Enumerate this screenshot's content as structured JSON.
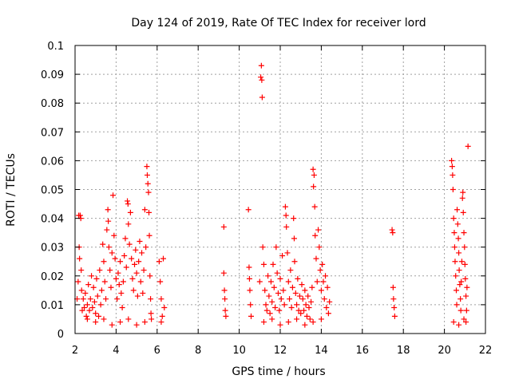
{
  "chart_data": {
    "type": "scatter",
    "title": "Day 124 of 2019, Rate Of TEC Index for receiver lord",
    "xlabel": "GPS time / hours",
    "ylabel": "ROTI / TECUs",
    "xlim": [
      2,
      22
    ],
    "ylim": [
      0,
      0.1
    ],
    "x_ticks": [
      "2",
      "4",
      "6",
      "8",
      "10",
      "12",
      "14",
      "16",
      "18",
      "20",
      "22"
    ],
    "y_ticks": [
      "0",
      "0.01",
      "0.02",
      "0.03",
      "0.04",
      "0.05",
      "0.06",
      "0.07",
      "0.08",
      "0.09",
      "0.1"
    ],
    "grid": true,
    "marker": "plus",
    "colors": {
      "series": "#ff0000",
      "grid": "#a0a0a0",
      "axes": "#000000"
    },
    "series": [
      {
        "points": [
          [
            2.1,
            0.012
          ],
          [
            2.15,
            0.018
          ],
          [
            2.18,
            0.041
          ],
          [
            2.2,
            0.03
          ],
          [
            2.22,
            0.026
          ],
          [
            2.25,
            0.041
          ],
          [
            2.28,
            0.04
          ],
          [
            2.3,
            0.022
          ],
          [
            2.32,
            0.015
          ],
          [
            2.35,
            0.008
          ],
          [
            2.4,
            0.012
          ],
          [
            2.45,
            0.009
          ],
          [
            2.5,
            0.014
          ],
          [
            2.55,
            0.006
          ],
          [
            2.6,
            0.01
          ],
          [
            2.65,
            0.017
          ],
          [
            2.7,
            0.008
          ],
          [
            2.75,
            0.012
          ],
          [
            2.8,
            0.02
          ],
          [
            2.85,
            0.009
          ],
          [
            2.9,
            0.016
          ],
          [
            2.95,
            0.011
          ],
          [
            3.0,
            0.007
          ],
          [
            3.05,
            0.019
          ],
          [
            3.1,
            0.013
          ],
          [
            3.15,
            0.006
          ],
          [
            3.2,
            0.022
          ],
          [
            3.25,
            0.01
          ],
          [
            3.3,
            0.015
          ],
          [
            3.35,
            0.031
          ],
          [
            3.4,
            0.025
          ],
          [
            3.45,
            0.018
          ],
          [
            3.5,
            0.012
          ],
          [
            3.55,
            0.036
          ],
          [
            3.6,
            0.043
          ],
          [
            3.62,
            0.039
          ],
          [
            3.65,
            0.03
          ],
          [
            3.7,
            0.022
          ],
          [
            3.75,
            0.016
          ],
          [
            3.8,
            0.028
          ],
          [
            3.85,
            0.048
          ],
          [
            3.9,
            0.034
          ],
          [
            3.95,
            0.026
          ],
          [
            4.0,
            0.019
          ],
          [
            4.05,
            0.012
          ],
          [
            4.1,
            0.021
          ],
          [
            4.15,
            0.017
          ],
          [
            4.2,
            0.025
          ],
          [
            4.25,
            0.014
          ],
          [
            4.3,
            0.009
          ],
          [
            4.35,
            0.018
          ],
          [
            4.4,
            0.027
          ],
          [
            4.45,
            0.033
          ],
          [
            4.5,
            0.023
          ],
          [
            4.55,
            0.046
          ],
          [
            4.58,
            0.045
          ],
          [
            4.6,
            0.038
          ],
          [
            4.65,
            0.031
          ],
          [
            4.7,
            0.042
          ],
          [
            4.75,
            0.026
          ],
          [
            4.8,
            0.019
          ],
          [
            4.85,
            0.015
          ],
          [
            4.9,
            0.024
          ],
          [
            4.95,
            0.029
          ],
          [
            5.0,
            0.021
          ],
          [
            5.05,
            0.013
          ],
          [
            5.1,
            0.025
          ],
          [
            5.15,
            0.032
          ],
          [
            5.2,
            0.018
          ],
          [
            5.25,
            0.028
          ],
          [
            5.3,
            0.014
          ],
          [
            5.35,
            0.022
          ],
          [
            5.4,
            0.043
          ],
          [
            5.45,
            0.03
          ],
          [
            5.5,
            0.058
          ],
          [
            5.52,
            0.055
          ],
          [
            5.55,
            0.052
          ],
          [
            5.58,
            0.049
          ],
          [
            5.6,
            0.042
          ],
          [
            5.62,
            0.034
          ],
          [
            5.65,
            0.02
          ],
          [
            5.68,
            0.012
          ],
          [
            5.7,
            0.007
          ],
          [
            5.72,
            0.005
          ],
          [
            6.1,
            0.025
          ],
          [
            6.15,
            0.018
          ],
          [
            6.2,
            0.012
          ],
          [
            6.25,
            0.006
          ],
          [
            6.3,
            0.026
          ],
          [
            6.35,
            0.009
          ],
          [
            3.0,
            0.004
          ],
          [
            3.4,
            0.005
          ],
          [
            3.8,
            0.003
          ],
          [
            4.2,
            0.004
          ],
          [
            4.6,
            0.005
          ],
          [
            5.0,
            0.003
          ],
          [
            5.4,
            0.004
          ],
          [
            2.6,
            0.005
          ],
          [
            6.2,
            0.004
          ],
          [
            9.25,
            0.037
          ],
          [
            9.25,
            0.021
          ],
          [
            9.28,
            0.015
          ],
          [
            9.3,
            0.012
          ],
          [
            9.32,
            0.008
          ],
          [
            9.35,
            0.006
          ],
          [
            10.45,
            0.043
          ],
          [
            10.48,
            0.023
          ],
          [
            10.5,
            0.019
          ],
          [
            10.52,
            0.015
          ],
          [
            10.55,
            0.01
          ],
          [
            10.58,
            0.006
          ],
          [
            11.0,
            0.018
          ],
          [
            11.05,
            0.089
          ],
          [
            11.08,
            0.093
          ],
          [
            11.1,
            0.088
          ],
          [
            11.12,
            0.082
          ],
          [
            11.15,
            0.03
          ],
          [
            11.2,
            0.024
          ],
          [
            11.25,
            0.015
          ],
          [
            11.3,
            0.01
          ],
          [
            11.35,
            0.008
          ],
          [
            11.4,
            0.02
          ],
          [
            11.45,
            0.013
          ],
          [
            11.5,
            0.007
          ],
          [
            11.55,
            0.018
          ],
          [
            11.6,
            0.011
          ],
          [
            11.65,
            0.024
          ],
          [
            11.7,
            0.016
          ],
          [
            11.75,
            0.009
          ],
          [
            11.8,
            0.03
          ],
          [
            11.85,
            0.021
          ],
          [
            11.9,
            0.014
          ],
          [
            11.95,
            0.008
          ],
          [
            12.0,
            0.019
          ],
          [
            12.05,
            0.012
          ],
          [
            12.1,
            0.027
          ],
          [
            12.15,
            0.015
          ],
          [
            12.2,
            0.01
          ],
          [
            12.25,
            0.044
          ],
          [
            12.28,
            0.041
          ],
          [
            12.3,
            0.037
          ],
          [
            12.35,
            0.028
          ],
          [
            12.4,
            0.018
          ],
          [
            12.45,
            0.012
          ],
          [
            12.5,
            0.022
          ],
          [
            12.55,
            0.009
          ],
          [
            12.6,
            0.016
          ],
          [
            12.65,
            0.04
          ],
          [
            12.68,
            0.033
          ],
          [
            12.7,
            0.025
          ],
          [
            12.75,
            0.014
          ],
          [
            12.8,
            0.01
          ],
          [
            12.85,
            0.019
          ],
          [
            12.9,
            0.008
          ],
          [
            12.95,
            0.013
          ],
          [
            13.0,
            0.007
          ],
          [
            13.05,
            0.017
          ],
          [
            13.1,
            0.012
          ],
          [
            13.15,
            0.008
          ],
          [
            13.2,
            0.015
          ],
          [
            13.25,
            0.01
          ],
          [
            13.3,
            0.006
          ],
          [
            13.35,
            0.013
          ],
          [
            13.4,
            0.009
          ],
          [
            13.45,
            0.005
          ],
          [
            13.5,
            0.011
          ],
          [
            13.55,
            0.016
          ],
          [
            13.6,
            0.057
          ],
          [
            13.62,
            0.051
          ],
          [
            13.65,
            0.055
          ],
          [
            13.68,
            0.044
          ],
          [
            13.7,
            0.034
          ],
          [
            13.75,
            0.026
          ],
          [
            13.8,
            0.018
          ],
          [
            13.85,
            0.036
          ],
          [
            13.9,
            0.03
          ],
          [
            13.95,
            0.022
          ],
          [
            14.0,
            0.015
          ],
          [
            14.05,
            0.024
          ],
          [
            14.1,
            0.018
          ],
          [
            14.15,
            0.012
          ],
          [
            14.2,
            0.02
          ],
          [
            14.25,
            0.009
          ],
          [
            14.3,
            0.016
          ],
          [
            14.35,
            0.007
          ],
          [
            14.4,
            0.011
          ],
          [
            11.2,
            0.004
          ],
          [
            11.6,
            0.005
          ],
          [
            12.0,
            0.003
          ],
          [
            12.4,
            0.004
          ],
          [
            12.8,
            0.005
          ],
          [
            13.2,
            0.003
          ],
          [
            13.6,
            0.004
          ],
          [
            14.0,
            0.005
          ],
          [
            17.45,
            0.036
          ],
          [
            17.48,
            0.035
          ],
          [
            17.5,
            0.016
          ],
          [
            17.52,
            0.012
          ],
          [
            17.55,
            0.009
          ],
          [
            17.58,
            0.006
          ],
          [
            20.35,
            0.06
          ],
          [
            20.38,
            0.058
          ],
          [
            20.4,
            0.055
          ],
          [
            20.42,
            0.05
          ],
          [
            20.45,
            0.04
          ],
          [
            20.48,
            0.035
          ],
          [
            20.5,
            0.03
          ],
          [
            20.52,
            0.025
          ],
          [
            20.55,
            0.02
          ],
          [
            20.58,
            0.015
          ],
          [
            20.6,
            0.01
          ],
          [
            20.62,
            0.043
          ],
          [
            20.65,
            0.038
          ],
          [
            20.68,
            0.033
          ],
          [
            20.7,
            0.028
          ],
          [
            20.72,
            0.022
          ],
          [
            20.75,
            0.017
          ],
          [
            20.78,
            0.012
          ],
          [
            20.8,
            0.008
          ],
          [
            20.82,
            0.018
          ],
          [
            20.85,
            0.025
          ],
          [
            20.88,
            0.047
          ],
          [
            20.9,
            0.049
          ],
          [
            20.92,
            0.042
          ],
          [
            20.95,
            0.035
          ],
          [
            20.98,
            0.03
          ],
          [
            21.0,
            0.024
          ],
          [
            21.02,
            0.019
          ],
          [
            21.05,
            0.013
          ],
          [
            21.08,
            0.008
          ],
          [
            21.1,
            0.016
          ],
          [
            21.15,
            0.065
          ],
          [
            20.45,
            0.004
          ],
          [
            20.7,
            0.003
          ],
          [
            20.95,
            0.005
          ],
          [
            21.05,
            0.004
          ]
        ]
      }
    ]
  }
}
